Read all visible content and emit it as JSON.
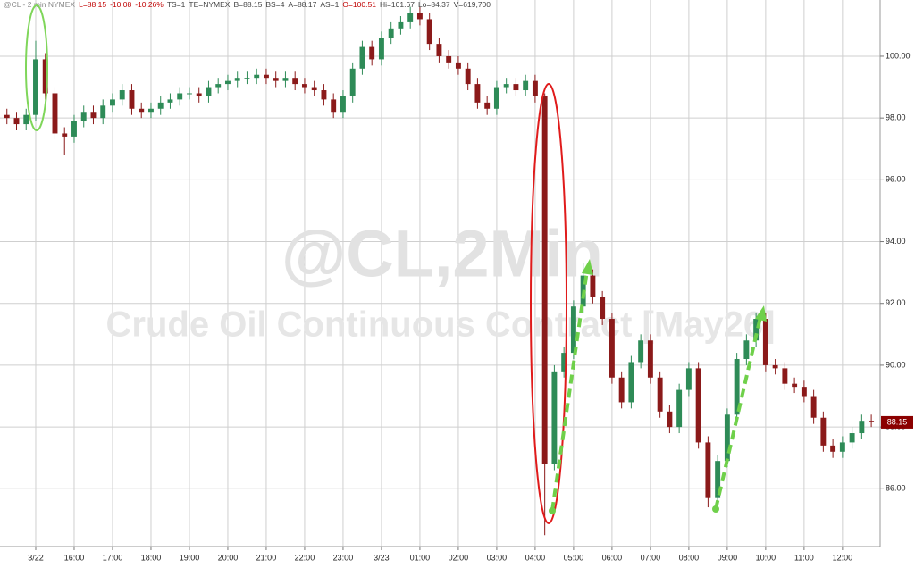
{
  "chart_data": {
    "type": "candlestick",
    "header": [
      {
        "text": "@CL - 2 min NYMEX",
        "color": "#888888"
      },
      {
        "text": "L=88.15",
        "color": "#c00000"
      },
      {
        "text": "-10.08",
        "color": "#c00000"
      },
      {
        "text": "-10.26%",
        "color": "#c00000"
      },
      {
        "text": "TS=1",
        "color": "#444444"
      },
      {
        "text": "TE=NYMEX",
        "color": "#444444"
      },
      {
        "text": "B=88.15",
        "color": "#444444"
      },
      {
        "text": "BS=4",
        "color": "#444444"
      },
      {
        "text": "A=88.17",
        "color": "#444444"
      },
      {
        "text": "AS=1",
        "color": "#444444"
      },
      {
        "text": "O=100.51",
        "color": "#c00000"
      },
      {
        "text": "Hi=101.67",
        "color": "#444444"
      },
      {
        "text": "Lo=84.37",
        "color": "#444444"
      },
      {
        "text": "V=619,700",
        "color": "#444444"
      }
    ],
    "watermark": "@CL,2Min",
    "watermark_subtitle": "Crude Oil Continuous Contract [May26]",
    "up_color": "#2e8b57",
    "down_color": "#8b1a1a",
    "last_price": 88.15,
    "last_price_color": "#8b0000",
    "xlim": [
      14.07,
      36.98
    ],
    "ylim": [
      84.13,
      101.82
    ],
    "grid": true,
    "xticks": [
      {
        "value": 15,
        "label": "3/22"
      },
      {
        "value": 16,
        "label": "16:00"
      },
      {
        "value": 17,
        "label": "17:00"
      },
      {
        "value": 18,
        "label": "18:00"
      },
      {
        "value": 19,
        "label": "19:00"
      },
      {
        "value": 20,
        "label": "20:00"
      },
      {
        "value": 21,
        "label": "21:00"
      },
      {
        "value": 22,
        "label": "22:00"
      },
      {
        "value": 23,
        "label": "23:00"
      },
      {
        "value": 24,
        "label": "3/23"
      },
      {
        "value": 25,
        "label": "01:00"
      },
      {
        "value": 26,
        "label": "02:00"
      },
      {
        "value": 27,
        "label": "03:00"
      },
      {
        "value": 28,
        "label": "04:00"
      },
      {
        "value": 29,
        "label": "05:00"
      },
      {
        "value": 30,
        "label": "06:00"
      },
      {
        "value": 31,
        "label": "07:00"
      },
      {
        "value": 32,
        "label": "08:00"
      },
      {
        "value": 33,
        "label": "09:00"
      },
      {
        "value": 34,
        "label": "10:00"
      },
      {
        "value": 35,
        "label": "11:00"
      },
      {
        "value": 36,
        "label": "12:00"
      }
    ],
    "yticks": [
      {
        "value": 86,
        "label": "86.00"
      },
      {
        "value": 88,
        "label": "88.00"
      },
      {
        "value": 90,
        "label": "90.00"
      },
      {
        "value": 92,
        "label": "92.00"
      },
      {
        "value": 94,
        "label": "94.00"
      },
      {
        "value": 96,
        "label": "96.00"
      },
      {
        "value": 98,
        "label": "98.00"
      },
      {
        "value": 100,
        "label": "100.00"
      }
    ],
    "x": [
      14.25,
      14.5,
      14.75,
      15,
      15.25,
      15.5,
      15.75,
      16,
      16.25,
      16.5,
      16.75,
      17,
      17.25,
      17.5,
      17.75,
      18,
      18.25,
      18.5,
      18.75,
      19,
      19.25,
      19.5,
      19.75,
      20,
      20.25,
      20.5,
      20.75,
      21,
      21.25,
      21.5,
      21.75,
      22,
      22.25,
      22.5,
      22.75,
      23,
      23.25,
      23.5,
      23.75,
      24,
      24.25,
      24.5,
      24.75,
      25,
      25.25,
      25.5,
      25.75,
      26,
      26.25,
      26.5,
      26.75,
      27,
      27.25,
      27.5,
      27.75,
      28,
      28.25,
      28.5,
      28.75,
      29,
      29.25,
      29.5,
      29.75,
      30,
      30.25,
      30.5,
      30.75,
      31,
      31.25,
      31.5,
      31.75,
      32,
      32.25,
      32.5,
      32.75,
      33,
      33.25,
      33.5,
      33.75,
      34,
      34.25,
      34.5,
      34.75,
      35,
      35.25,
      35.5,
      35.75,
      36,
      36.25,
      36.5,
      36.75
    ],
    "open": [
      98.1,
      98.0,
      97.8,
      98.1,
      99.9,
      98.8,
      97.5,
      97.4,
      97.9,
      98.2,
      98.0,
      98.4,
      98.6,
      98.9,
      98.3,
      98.2,
      98.3,
      98.5,
      98.6,
      98.8,
      98.8,
      98.7,
      99.0,
      99.1,
      99.2,
      99.3,
      99.3,
      99.4,
      99.3,
      99.2,
      99.3,
      99.1,
      99.0,
      98.9,
      98.6,
      98.2,
      98.7,
      99.6,
      100.3,
      99.9,
      100.6,
      100.9,
      101.1,
      101.4,
      101.2,
      100.4,
      100.0,
      99.8,
      99.6,
      99.1,
      98.5,
      98.3,
      99.0,
      99.1,
      98.9,
      99.2,
      98.7,
      86.8,
      89.8,
      90.4,
      91.9,
      92.9,
      92.2,
      91.5,
      89.6,
      88.8,
      90.1,
      90.8,
      89.6,
      88.5,
      88.0,
      89.2,
      89.9,
      87.5,
      85.7,
      86.9,
      88.4,
      90.2,
      90.8,
      91.5,
      90.0,
      89.9,
      89.4,
      89.3,
      89.0,
      88.3,
      87.4,
      87.2,
      87.5,
      87.8,
      88.2
    ],
    "high": [
      98.3,
      98.2,
      98.3,
      100.5,
      100.1,
      99.0,
      97.7,
      98.1,
      98.4,
      98.4,
      98.6,
      98.8,
      99.1,
      99.1,
      98.5,
      98.5,
      98.7,
      98.8,
      99.0,
      99.0,
      99.0,
      99.2,
      99.3,
      99.4,
      99.5,
      99.5,
      99.6,
      99.6,
      99.5,
      99.5,
      99.5,
      99.3,
      99.2,
      99.1,
      98.8,
      98.9,
      99.8,
      100.5,
      100.5,
      100.8,
      101.1,
      101.3,
      101.6,
      101.6,
      101.4,
      100.6,
      100.2,
      100.0,
      99.8,
      99.3,
      98.7,
      99.2,
      99.3,
      99.3,
      99.4,
      99.4,
      98.8,
      90.0,
      90.6,
      92.1,
      93.3,
      93.1,
      92.4,
      91.7,
      89.8,
      90.3,
      91.0,
      91.0,
      89.8,
      88.7,
      89.4,
      90.1,
      90.1,
      87.7,
      87.1,
      88.6,
      90.4,
      91.0,
      91.7,
      91.7,
      90.2,
      90.1,
      89.6,
      89.5,
      89.2,
      88.5,
      87.6,
      87.7,
      88.0,
      88.4,
      88.4
    ],
    "low": [
      97.8,
      97.6,
      97.6,
      97.9,
      98.6,
      97.3,
      96.8,
      97.2,
      97.7,
      97.8,
      97.8,
      98.2,
      98.4,
      98.1,
      98.0,
      98.0,
      98.1,
      98.3,
      98.4,
      98.6,
      98.5,
      98.5,
      98.8,
      98.9,
      99.0,
      99.1,
      99.1,
      99.1,
      99.0,
      99.0,
      98.9,
      98.8,
      98.7,
      98.4,
      98.0,
      98.0,
      98.5,
      99.4,
      99.7,
      99.7,
      100.4,
      100.7,
      100.9,
      101.0,
      100.2,
      99.8,
      99.6,
      99.4,
      98.9,
      98.3,
      98.1,
      98.1,
      98.8,
      98.7,
      98.7,
      98.5,
      84.5,
      86.6,
      89.6,
      90.2,
      91.7,
      92.0,
      91.3,
      89.4,
      88.6,
      88.6,
      89.9,
      89.4,
      88.3,
      87.8,
      87.8,
      89.0,
      87.3,
      85.4,
      85.5,
      86.7,
      88.2,
      90.0,
      90.6,
      89.8,
      89.7,
      89.2,
      89.1,
      88.8,
      88.1,
      87.2,
      87.0,
      87.0,
      87.3,
      87.6,
      88.0
    ],
    "close": [
      98.0,
      97.8,
      98.1,
      99.9,
      98.8,
      97.5,
      97.4,
      97.9,
      98.2,
      98.0,
      98.4,
      98.6,
      98.9,
      98.3,
      98.2,
      98.3,
      98.5,
      98.6,
      98.8,
      98.8,
      98.7,
      99.0,
      99.1,
      99.2,
      99.3,
      99.3,
      99.4,
      99.3,
      99.2,
      99.3,
      99.1,
      99.0,
      98.9,
      98.6,
      98.2,
      98.7,
      99.6,
      100.3,
      99.9,
      100.6,
      100.9,
      101.1,
      101.4,
      101.2,
      100.4,
      100.0,
      99.8,
      99.6,
      99.1,
      98.5,
      98.3,
      99.0,
      99.1,
      98.9,
      99.2,
      98.7,
      86.8,
      89.8,
      90.4,
      91.9,
      92.9,
      92.2,
      91.5,
      89.6,
      88.8,
      90.1,
      90.8,
      89.6,
      88.5,
      88.0,
      89.2,
      89.9,
      87.5,
      85.7,
      86.9,
      88.4,
      90.2,
      90.8,
      91.5,
      90.0,
      89.9,
      89.4,
      89.3,
      89.0,
      88.3,
      87.4,
      87.2,
      87.5,
      87.8,
      88.2,
      88.15
    ]
  }
}
